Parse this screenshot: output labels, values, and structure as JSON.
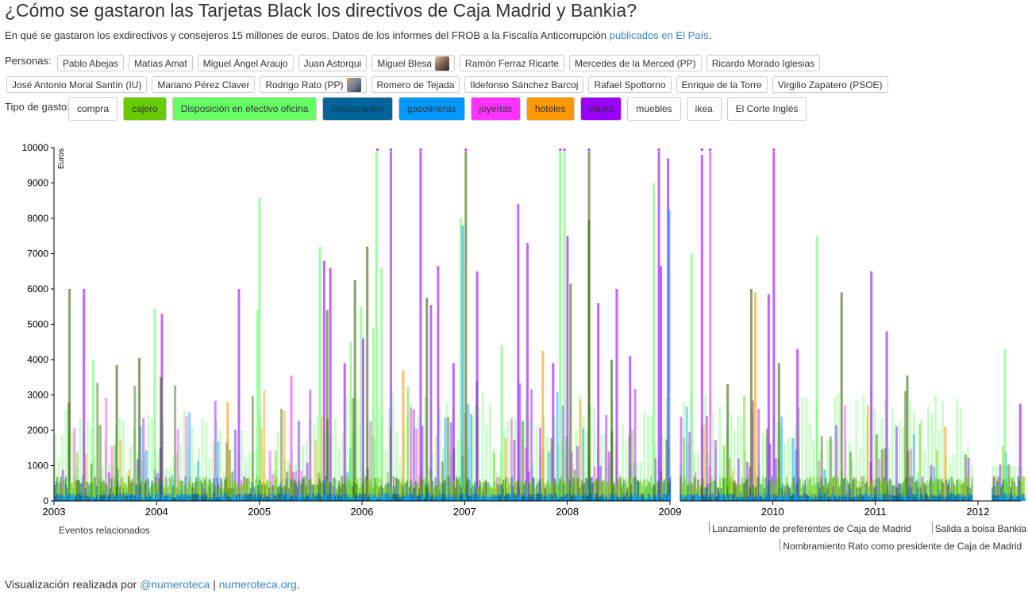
{
  "header": {
    "title": "¿Cómo se gastaron las Tarjetas Black los directivos de Caja Madrid y Bankia?",
    "subtitle_text": "En qué se gastaron los exdirectivos y consejeros 15 millones de euros. Datos de los informes del FROB a la Fiscalía Anticorrupción ",
    "subtitle_link": "publicados en El País",
    "subtitle_end": "."
  },
  "personas": {
    "label": "Personas:",
    "row1": [
      "Pablo Abejas",
      "Matías Amat",
      "Miguel Ángel Araujo",
      "Juan Astorqui",
      "Miguel Blesa",
      "Ramón Ferraz Ricarte",
      "Mercedes de la Merced (PP)",
      "Ricardo Morado Iglesias"
    ],
    "row2": [
      "José Antonio Moral Santín (IU)",
      "Mariano Pérez Claver",
      "Rodrigo Rato (PP)",
      "Romero de Tejada",
      "Ildefonso Sánchez Barcoj",
      "Rafael Spottorno",
      "Enrique de la Torre",
      "Virgilio Zapatero (PSOE)"
    ]
  },
  "tipos": {
    "label": "Tipo de gasto:",
    "items": [
      {
        "label": "compra",
        "color": "#ffffff"
      },
      {
        "label": "cajero",
        "color": "#66cc00"
      },
      {
        "label": "Disposición en efectivo oficina",
        "color": "#66ff66"
      },
      {
        "label": "restaurantes",
        "color": "#006699"
      },
      {
        "label": "gasolineras",
        "color": "#0099ff"
      },
      {
        "label": "joyerias",
        "color": "#ff33ff"
      },
      {
        "label": "hoteles",
        "color": "#ff9900"
      },
      {
        "label": "viajes",
        "color": "#9900ff"
      },
      {
        "label": "muebles",
        "color": "#ffffff"
      },
      {
        "label": "ikea",
        "color": "#ffffff"
      },
      {
        "label": "El Corte Inglés",
        "color": "#ffffff"
      }
    ]
  },
  "chart_data": {
    "type": "bar",
    "ylabel": "Euros",
    "ylim": [
      0,
      10000
    ],
    "y_ticks": [
      "0",
      "1000",
      "2000",
      "3000",
      "4000",
      "5000",
      "6000",
      "7000",
      "8000",
      "9000",
      "10000"
    ],
    "x_ticks": [
      "2003",
      "2004",
      "2005",
      "2006",
      "2007",
      "2008",
      "2009",
      "2010",
      "2011",
      "2012"
    ],
    "xlim": [
      2003.0,
      2012.5
    ],
    "series_colors": {
      "cajero": "#66cc00",
      "oficina": "#66ff66",
      "viajes": "#9900ff",
      "joyerias": "#ff33ff",
      "hoteles": "#ff9900",
      "gasolineras": "#0099ff",
      "restaurantes": "#006699",
      "olive": "#336600"
    },
    "tall_bars": [
      {
        "x": 2003.14,
        "value": 6000,
        "type": "olive"
      },
      {
        "x": 2003.28,
        "value": 6000,
        "type": "viajes"
      },
      {
        "x": 2003.37,
        "value": 4000,
        "type": "oficina"
      },
      {
        "x": 2003.6,
        "value": 3850,
        "type": "olive"
      },
      {
        "x": 2003.82,
        "value": 4050,
        "type": "olive"
      },
      {
        "x": 2003.97,
        "value": 5450,
        "type": "oficina"
      },
      {
        "x": 2004.04,
        "value": 5300,
        "type": "viajes"
      },
      {
        "x": 2004.03,
        "value": 3500,
        "type": "olive"
      },
      {
        "x": 2004.68,
        "value": 2800,
        "type": "hoteles"
      },
      {
        "x": 2004.79,
        "value": 6000,
        "type": "viajes"
      },
      {
        "x": 2004.97,
        "value": 5400,
        "type": "oficina"
      },
      {
        "x": 2004.99,
        "value": 8600,
        "type": "oficina"
      },
      {
        "x": 2005.3,
        "value": 3550,
        "type": "joyerias"
      },
      {
        "x": 2005.58,
        "value": 7200,
        "type": "oficina"
      },
      {
        "x": 2005.62,
        "value": 6800,
        "type": "viajes"
      },
      {
        "x": 2005.65,
        "value": 5400,
        "type": "olive"
      },
      {
        "x": 2005.68,
        "value": 6600,
        "type": "viajes"
      },
      {
        "x": 2005.82,
        "value": 3900,
        "type": "viajes"
      },
      {
        "x": 2005.88,
        "value": 4500,
        "type": "oficina"
      },
      {
        "x": 2005.92,
        "value": 6250,
        "type": "olive"
      },
      {
        "x": 2005.98,
        "value": 5500,
        "type": "oficina"
      },
      {
        "x": 2006.0,
        "value": 4600,
        "type": "viajes"
      },
      {
        "x": 2006.04,
        "value": 7200,
        "type": "olive"
      },
      {
        "x": 2006.1,
        "value": 4900,
        "type": "oficina"
      },
      {
        "x": 2006.13,
        "value": 9900,
        "type": "oficina"
      },
      {
        "x": 2006.18,
        "value": 6600,
        "type": "oficina"
      },
      {
        "x": 2006.27,
        "value": 9900,
        "type": "viajes"
      },
      {
        "x": 2006.39,
        "value": 3700,
        "type": "hoteles"
      },
      {
        "x": 2006.56,
        "value": 9900,
        "type": "viajes"
      },
      {
        "x": 2006.62,
        "value": 5750,
        "type": "olive"
      },
      {
        "x": 2006.66,
        "value": 5550,
        "type": "viajes"
      },
      {
        "x": 2006.73,
        "value": 6650,
        "type": "viajes"
      },
      {
        "x": 2006.88,
        "value": 3900,
        "type": "viajes"
      },
      {
        "x": 2006.95,
        "value": 8000,
        "type": "oficina"
      },
      {
        "x": 2006.97,
        "value": 7800,
        "type": "gasolineras"
      },
      {
        "x": 2007.0,
        "value": 9900,
        "type": "olive"
      },
      {
        "x": 2007.11,
        "value": 6500,
        "type": "viajes"
      },
      {
        "x": 2007.35,
        "value": 4400,
        "type": "oficina"
      },
      {
        "x": 2007.51,
        "value": 8400,
        "type": "viajes"
      },
      {
        "x": 2007.6,
        "value": 7300,
        "type": "viajes"
      },
      {
        "x": 2007.75,
        "value": 4250,
        "type": "hoteles"
      },
      {
        "x": 2007.85,
        "value": 3900,
        "type": "viajes"
      },
      {
        "x": 2007.92,
        "value": 9900,
        "type": "oficina"
      },
      {
        "x": 2007.96,
        "value": 9900,
        "type": "oficina"
      },
      {
        "x": 2007.99,
        "value": 7500,
        "type": "viajes"
      },
      {
        "x": 2008.02,
        "value": 6150,
        "type": "olive"
      },
      {
        "x": 2008.2,
        "value": 9900,
        "type": "olive"
      },
      {
        "x": 2008.2,
        "value": 7950,
        "type": "olive"
      },
      {
        "x": 2008.29,
        "value": 5600,
        "type": "viajes"
      },
      {
        "x": 2008.42,
        "value": 4000,
        "type": "olive"
      },
      {
        "x": 2008.47,
        "value": 6000,
        "type": "viajes"
      },
      {
        "x": 2008.6,
        "value": 4100,
        "type": "viajes"
      },
      {
        "x": 2008.83,
        "value": 9000,
        "type": "oficina"
      },
      {
        "x": 2008.88,
        "value": 9900,
        "type": "viajes"
      },
      {
        "x": 2008.9,
        "value": 6650,
        "type": "viajes"
      },
      {
        "x": 2008.97,
        "value": 9700,
        "type": "viajes"
      },
      {
        "x": 2008.98,
        "value": 8250,
        "type": "gasolineras"
      },
      {
        "x": 2009.2,
        "value": 7000,
        "type": "oficina"
      },
      {
        "x": 2009.3,
        "value": 9800,
        "type": "viajes"
      },
      {
        "x": 2009.38,
        "value": 9900,
        "type": "joyerias"
      },
      {
        "x": 2009.55,
        "value": 3300,
        "type": "olive"
      },
      {
        "x": 2009.78,
        "value": 6000,
        "type": "olive"
      },
      {
        "x": 2009.82,
        "value": 5900,
        "type": "hoteles"
      },
      {
        "x": 2009.95,
        "value": 5850,
        "type": "viajes"
      },
      {
        "x": 2010.0,
        "value": 9900,
        "type": "viajes"
      },
      {
        "x": 2010.05,
        "value": 3900,
        "type": "olive"
      },
      {
        "x": 2010.23,
        "value": 4300,
        "type": "viajes"
      },
      {
        "x": 2010.42,
        "value": 7500,
        "type": "oficina"
      },
      {
        "x": 2010.66,
        "value": 5900,
        "type": "olive"
      },
      {
        "x": 2010.95,
        "value": 6500,
        "type": "viajes"
      },
      {
        "x": 2011.1,
        "value": 4800,
        "type": "viajes"
      },
      {
        "x": 2011.3,
        "value": 3550,
        "type": "olive"
      },
      {
        "x": 2011.67,
        "value": 2100,
        "type": "hoteles"
      },
      {
        "x": 2012.25,
        "value": 4300,
        "type": "oficina"
      },
      {
        "x": 2012.4,
        "value": 2750,
        "type": "viajes"
      }
    ],
    "gaps": [
      [
        2009.01,
        2009.09
      ],
      [
        2011.95,
        2012.13
      ]
    ],
    "caps": [
      2006.14,
      2006.27,
      2006.56,
      2007.0,
      2007.92,
      2007.96,
      2008.2,
      2008.88,
      2009.3,
      2009.38,
      2010.0
    ]
  },
  "events": {
    "label": "Eventos relacionados",
    "items": [
      {
        "label": "Lanzamiento de preferentes de Caja de Madrid",
        "x": 2009.38
      },
      {
        "label": "Salida a bolsa Bankia",
        "x": 2011.55
      },
      {
        "label": "Nombramiento Rato como presidente de Caja de Madrid",
        "x": 2010.07
      }
    ]
  },
  "footer": {
    "text": "Visualización realizada por ",
    "link1": "@numeroteca",
    "sep": " | ",
    "link2": "numeroteca.org",
    "end": "."
  }
}
